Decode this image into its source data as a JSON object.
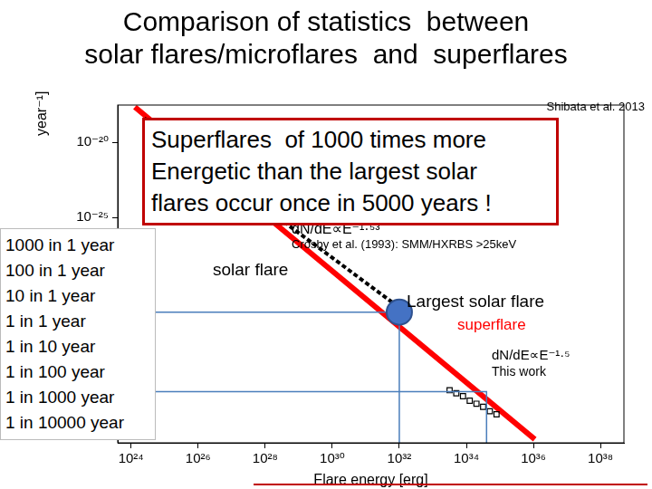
{
  "title": "Comparison of statistics  between\nsolar flares/microflares  and  superflares",
  "source": "Shibata et al. 2013",
  "callout": "Superflares  of 1000 times more\nEnergetic than the largest solar\nflares occur once in 5000 years !",
  "rate_list": [
    "1000 in 1 year",
    "100 in 1 year",
    "10 in 1 year",
    "1 in 1 year",
    "1 in 10 year",
    "1 in 100 year",
    "1 in 1000 year",
    "1 in 10000 year"
  ],
  "chart_data": {
    "type": "scatter",
    "log": true,
    "grid": false,
    "legend": "none",
    "x_label": "Flare energy [erg]",
    "y_label": "year⁻¹]",
    "xlim": [
      4e+23,
      5e+38
    ],
    "ylim": [
      1e-40,
      3e-18
    ],
    "xticks": [
      {
        "value": 1e+24,
        "label": "10²⁴"
      },
      {
        "value": 1e+26,
        "label": "10²⁶"
      },
      {
        "value": 1e+28,
        "label": "10²⁸"
      },
      {
        "value": 1e+30,
        "label": "10³⁰"
      },
      {
        "value": 1e+32,
        "label": "10³²"
      },
      {
        "value": 1e+34,
        "label": "10³⁴"
      },
      {
        "value": 1e+36,
        "label": "10³⁶"
      },
      {
        "value": 1e+38,
        "label": "10³⁸"
      }
    ],
    "yticks": [
      {
        "value": 1e-25,
        "label": "10⁻²⁵"
      },
      {
        "value": 1e-20,
        "label": "10⁻²⁰"
      }
    ],
    "series": [
      {
        "color": "#000000",
        "marker": "none",
        "line_style": "dashed",
        "x": [
          2.5e+24,
          1e+32
        ],
        "values": [
          4e-19,
          1e-31
        ]
      },
      {
        "color": "#4a7ebb",
        "marker": "none",
        "line_style": "solid",
        "x": [
          4e+23,
          1e+32,
          1e+32
        ],
        "values": [
          5e-32,
          5e-32,
          1e-40
        ]
      },
      {
        "color": "#4a7ebb",
        "marker": "none",
        "line_style": "solid",
        "x": [
          4e+23,
          4e+34,
          4e+34
        ],
        "values": [
          2.5e-37,
          2.5e-37,
          1e-40
        ]
      },
      {
        "color": "#000000",
        "marker": "rect",
        "line_style": "none",
        "x": [
          3.16e+33,
          5.01e+33,
          7.94e+33,
          1.26e+34,
          2e+34,
          3.16e+34,
          5.01e+34,
          7.94e+34
        ],
        "values": [
          3.16e-37,
          2e-37,
          1.26e-37,
          6.3e-38,
          4e-38,
          2.5e-38,
          1.26e-38,
          7.9e-39
        ]
      },
      {
        "color": "#ff0000",
        "marker": "none",
        "line_style": "solid",
        "x": [
          1.3e+24,
          1.1e+36
        ],
        "values": [
          2.2e-18,
          1.7e-40
        ]
      },
      {
        "color": "#4472c4",
        "marker": "circle",
        "line_style": "none",
        "x": [
          1e+32
        ],
        "values": [
          5e-32
        ]
      }
    ],
    "annotations": [
      {
        "text": "dN/dE∝E⁻¹·⁵³"
      },
      {
        "text": "Crosby et al. (1993): SMM/HXRBS >25keV"
      },
      {
        "text": "solar flare"
      },
      {
        "text": "Largest solar flare"
      },
      {
        "text": "superflare",
        "color": "#ff0000"
      },
      {
        "text": "dN/dE∝E⁻¹·⁵"
      },
      {
        "text": "This work"
      }
    ]
  }
}
